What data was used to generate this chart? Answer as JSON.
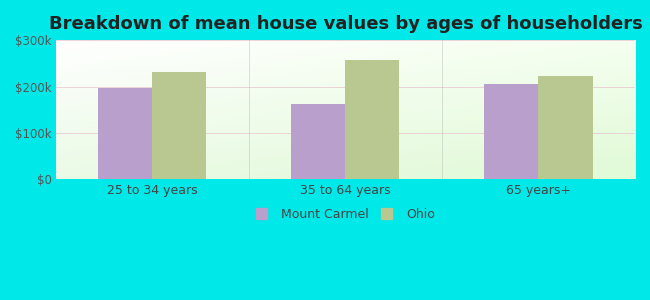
{
  "title": "Breakdown of mean house values by ages of householders",
  "categories": [
    "25 to 34 years",
    "35 to 64 years",
    "65 years+"
  ],
  "mount_carmel": [
    197000,
    162000,
    205000
  ],
  "ohio": [
    232000,
    258000,
    222000
  ],
  "ylim": [
    0,
    300000
  ],
  "yticks": [
    0,
    100000,
    200000,
    300000
  ],
  "ytick_labels": [
    "$0",
    "$100k",
    "$200k",
    "$300k"
  ],
  "bar_color_mc": "#b89fcc",
  "bar_color_ohio": "#b8c890",
  "background_outer": "#00e8e8",
  "legend_mc": "Mount Carmel",
  "legend_ohio": "Ohio",
  "title_fontsize": 13,
  "bar_width": 0.28
}
